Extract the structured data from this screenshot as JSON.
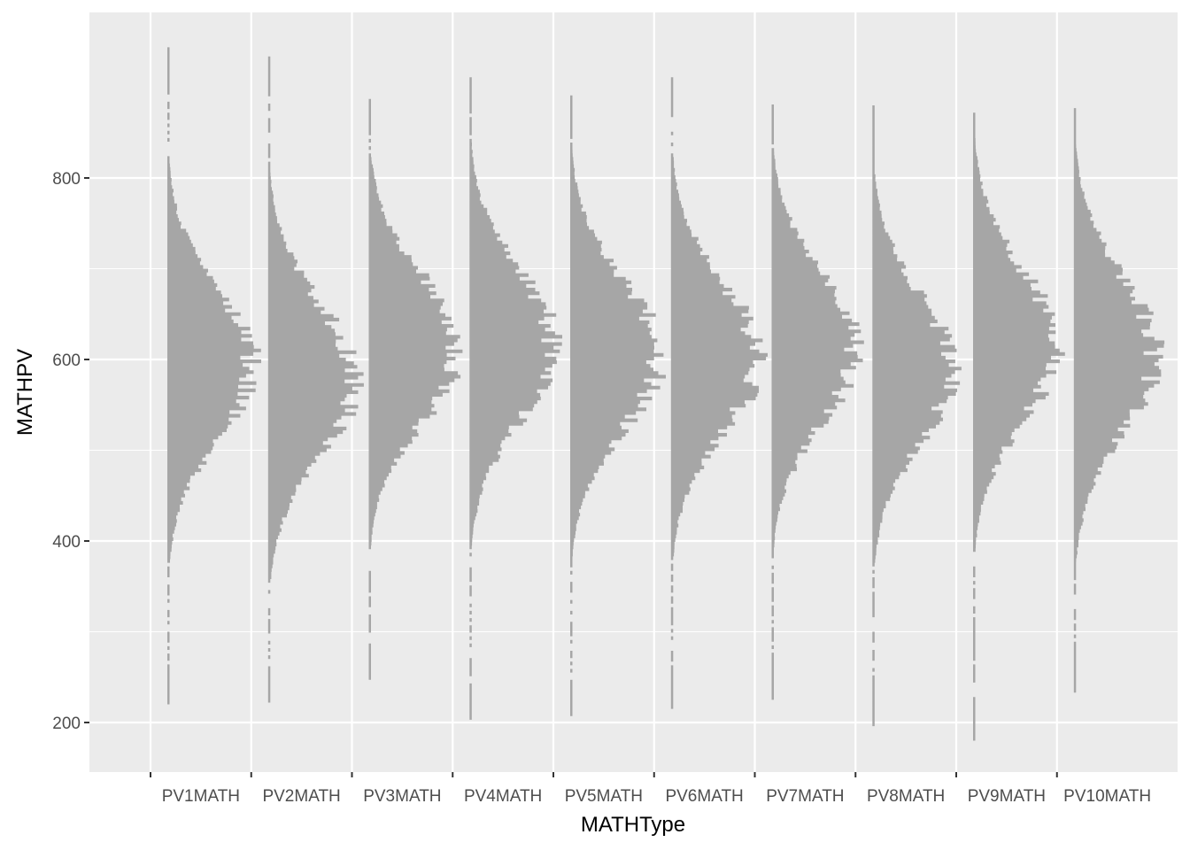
{
  "chart_data": {
    "type": "histogram",
    "orientation": "horizontal-bars-per-category",
    "title": "",
    "xlabel": "MATHType",
    "ylabel": "MATHPV",
    "categories": [
      "PV1MATH",
      "PV2MATH",
      "PV3MATH",
      "PV4MATH",
      "PV5MATH",
      "PV6MATH",
      "PV7MATH",
      "PV8MATH",
      "PV9MATH",
      "PV10MATH"
    ],
    "ylim": [
      145,
      985
    ],
    "yticks": [
      200,
      400,
      600,
      800
    ],
    "grid": true,
    "fill_color": "#a6a6a6",
    "panel_color": "#ebebeb",
    "grid_color": "#ffffff",
    "series": [
      {
        "category": "PV1MATH",
        "min": 220,
        "max": 942,
        "peak": 595,
        "peak_width_categories": 0.83,
        "spread": 82
      },
      {
        "category": "PV2MATH",
        "min": 222,
        "max": 932,
        "peak": 578,
        "peak_width_categories": 0.85,
        "spread": 84
      },
      {
        "category": "PV3MATH",
        "min": 247,
        "max": 886,
        "peak": 612,
        "peak_width_categories": 0.88,
        "spread": 80
      },
      {
        "category": "PV4MATH",
        "min": 203,
        "max": 910,
        "peak": 615,
        "peak_width_categories": 0.83,
        "spread": 82
      },
      {
        "category": "PV5MATH",
        "min": 207,
        "max": 888,
        "peak": 605,
        "peak_width_categories": 0.87,
        "spread": 82
      },
      {
        "category": "PV6MATH",
        "min": 215,
        "max": 910,
        "peak": 602,
        "peak_width_categories": 0.86,
        "spread": 82
      },
      {
        "category": "PV7MATH",
        "min": 225,
        "max": 880,
        "peak": 612,
        "peak_width_categories": 0.82,
        "spread": 82
      },
      {
        "category": "PV8MATH",
        "min": 196,
        "max": 877,
        "peak": 590,
        "peak_width_categories": 0.78,
        "spread": 82
      },
      {
        "category": "PV9MATH",
        "min": 180,
        "max": 870,
        "peak": 615,
        "peak_width_categories": 0.81,
        "spread": 84
      },
      {
        "category": "PV10MATH",
        "min": 233,
        "max": 877,
        "peak": 605,
        "peak_width_categories": 0.8,
        "spread": 86
      }
    ]
  }
}
